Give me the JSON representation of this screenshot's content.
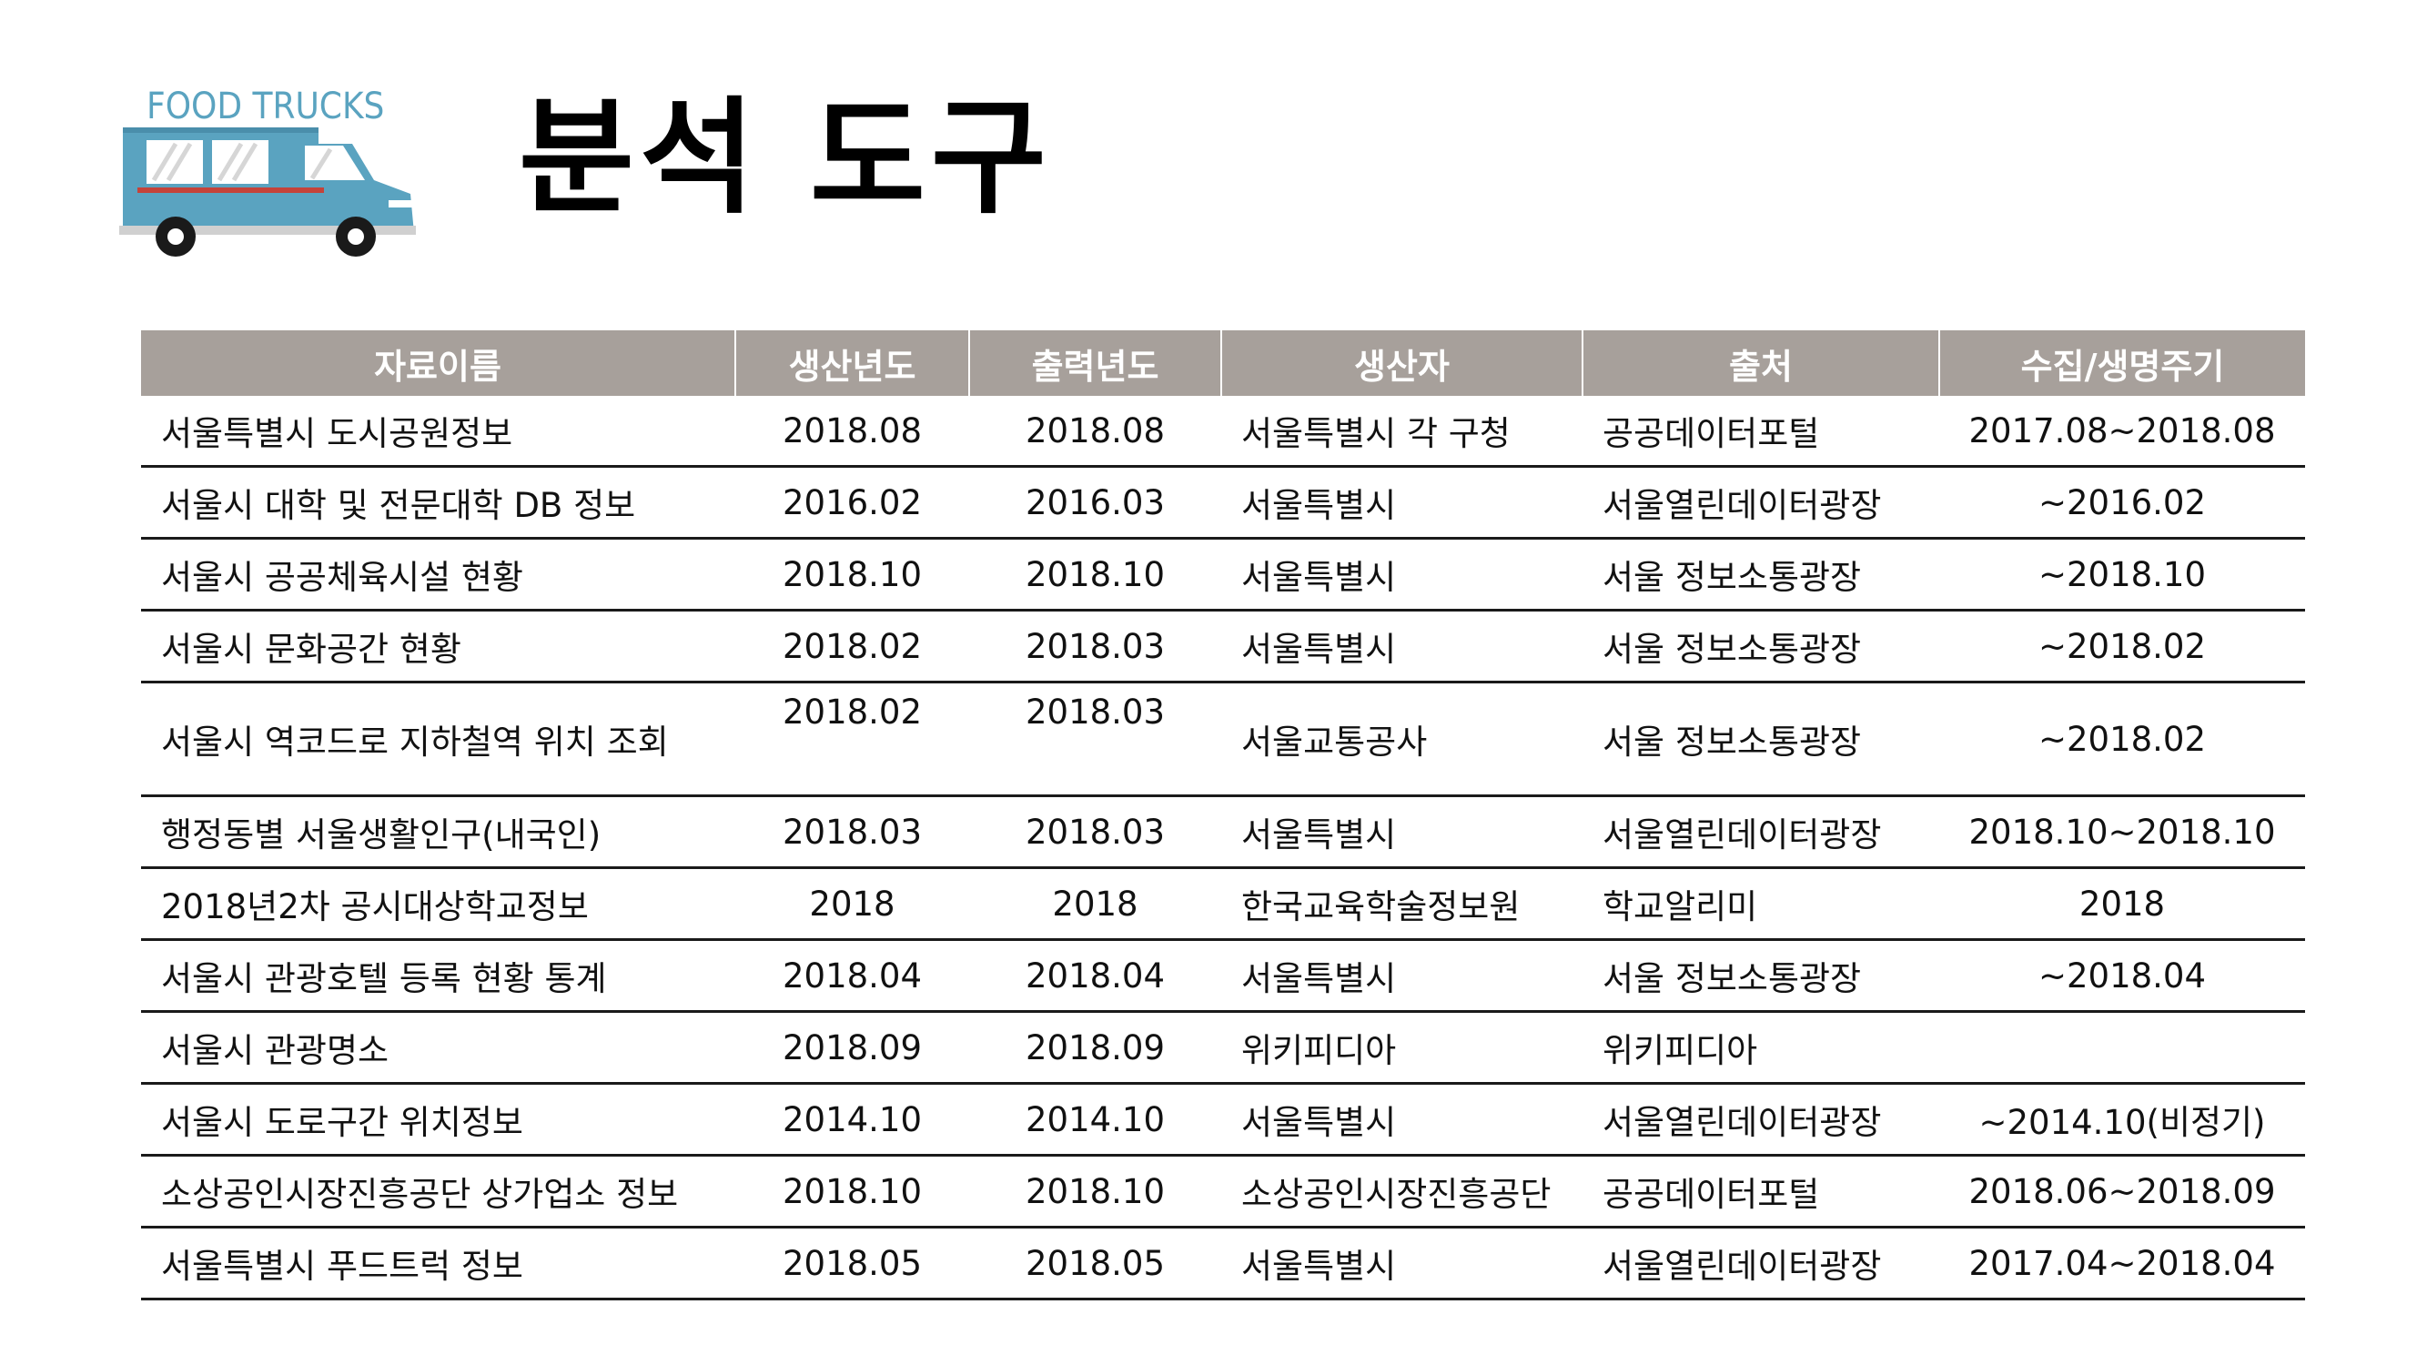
{
  "logo": {
    "text": "FOOD TRUCKS"
  },
  "title": "분석 도구",
  "table": {
    "headers": [
      "자료이름",
      "생산년도",
      "출력년도",
      "생산자",
      "출처",
      "수집/생명주기"
    ],
    "rows": [
      [
        "서울특별시 도시공원정보",
        "2018.08",
        "2018.08",
        "서울특별시 각 구청",
        "공공데이터포털",
        "2017.08~2018.08"
      ],
      [
        "서울시 대학 및 전문대학 DB 정보",
        "2016.02",
        "2016.03",
        "서울특별시",
        "서울열린데이터광장",
        "~2016.02"
      ],
      [
        "서울시 공공체육시설 현황",
        "2018.10",
        "2018.10",
        "서울특별시",
        "서울 정보소통광장",
        "~2018.10"
      ],
      [
        "서울시 문화공간 현황",
        "2018.02",
        "2018.03",
        "서울특별시",
        "서울 정보소통광장",
        "~2018.02"
      ],
      [
        "서울시 역코드로 지하철역 위치 조회",
        "2018.02",
        "2018.03",
        "서울교통공사",
        "서울 정보소통광장",
        "~2018.02"
      ],
      [
        "행정동별 서울생활인구(내국인)",
        "2018.03",
        "2018.03",
        "서울특별시",
        "서울열린데이터광장",
        "2018.10~2018.10"
      ],
      [
        "2018년2차 공시대상학교정보",
        "2018",
        "2018",
        "한국교육학술정보원",
        "학교알리미",
        "2018"
      ],
      [
        "서울시 관광호텔 등록 현황 통계",
        "2018.04",
        "2018.04",
        "서울특별시",
        "서울 정보소통광장",
        "~2018.04"
      ],
      [
        "서울시 관광명소",
        "2018.09",
        "2018.09",
        "위키피디아",
        "위키피디아",
        ""
      ],
      [
        "서울시 도로구간 위치정보",
        "2014.10",
        "2014.10",
        "서울특별시",
        "서울열린데이터광장",
        "~2014.10(비정기)"
      ],
      [
        "소상공인시장진흥공단 상가업소 정보",
        "2018.10",
        "2018.10",
        "소상공인시장진흥공단",
        "공공데이터포털",
        "2018.06~2018.09"
      ],
      [
        "서울특별시 푸드트럭 정보",
        "2018.05",
        "2018.05",
        "서울특별시",
        "서울열린데이터광장",
        "2017.04~2018.04"
      ]
    ]
  }
}
